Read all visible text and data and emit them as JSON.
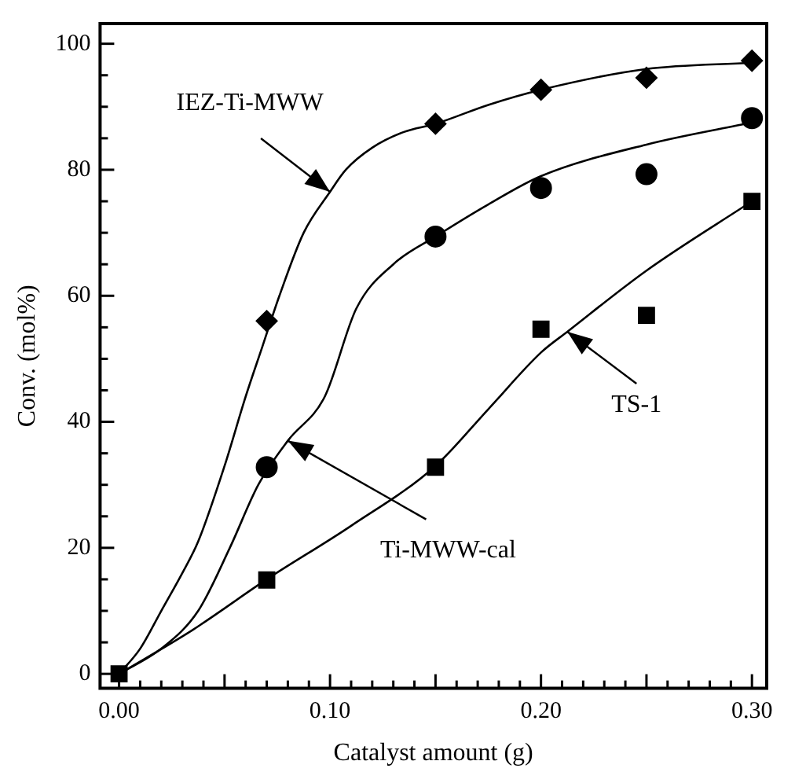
{
  "chart_data": {
    "type": "scatter",
    "xlabel": "Catalyst amount (g)",
    "ylabel": "Conv. (mol%)",
    "xlim": [
      -0.009,
      0.307
    ],
    "ylim": [
      -2.3,
      103.2
    ],
    "xticks": [
      {
        "value": 0,
        "label": "0.00"
      },
      {
        "value": 0.01,
        "label": null
      },
      {
        "value": 0.02,
        "label": null
      },
      {
        "value": 0.03,
        "label": null
      },
      {
        "value": 0.04,
        "label": null
      },
      {
        "value": 0.05,
        "label": null
      },
      {
        "value": 0.06,
        "label": null
      },
      {
        "value": 0.07,
        "label": null
      },
      {
        "value": 0.08,
        "label": null
      },
      {
        "value": 0.09,
        "label": null
      },
      {
        "value": 0.1,
        "label": "0.10"
      },
      {
        "value": 0.11,
        "label": null
      },
      {
        "value": 0.12,
        "label": null
      },
      {
        "value": 0.13,
        "label": null
      },
      {
        "value": 0.14,
        "label": null
      },
      {
        "value": 0.15,
        "label": null
      },
      {
        "value": 0.16,
        "label": null
      },
      {
        "value": 0.17,
        "label": null
      },
      {
        "value": 0.18,
        "label": null
      },
      {
        "value": 0.19,
        "label": null
      },
      {
        "value": 0.2,
        "label": "0.20"
      },
      {
        "value": 0.21,
        "label": null
      },
      {
        "value": 0.22,
        "label": null
      },
      {
        "value": 0.23,
        "label": null
      },
      {
        "value": 0.24,
        "label": null
      },
      {
        "value": 0.25,
        "label": null
      },
      {
        "value": 0.26,
        "label": null
      },
      {
        "value": 0.27,
        "label": null
      },
      {
        "value": 0.28,
        "label": null
      },
      {
        "value": 0.29,
        "label": null
      },
      {
        "value": 0.3,
        "label": "0.30"
      }
    ],
    "yticks": [
      0,
      {
        "value": 5,
        "label": null
      },
      {
        "value": 10,
        "label": null
      },
      {
        "value": 15,
        "label": null
      },
      20,
      {
        "value": 25,
        "label": null
      },
      {
        "value": 30,
        "label": null
      },
      {
        "value": 35,
        "label": null
      },
      40,
      {
        "value": 45,
        "label": null
      },
      {
        "value": 50,
        "label": null
      },
      {
        "value": 55,
        "label": null
      },
      60,
      {
        "value": 65,
        "label": null
      },
      {
        "value": 70,
        "label": null
      },
      {
        "value": 75,
        "label": null
      },
      80,
      {
        "value": 85,
        "label": null
      },
      {
        "value": 90,
        "label": null
      },
      {
        "value": 95,
        "label": null
      },
      100
    ],
    "grid": false,
    "legend": false,
    "series": [
      {
        "type": "scatter",
        "marker": "diamond",
        "color": "#000000",
        "x": [
          0.07,
          0.15,
          0.2,
          0.25,
          0.3
        ],
        "values": [
          56,
          87.3,
          92.7,
          94.6,
          97.3
        ]
      },
      {
        "type": "scatter",
        "marker": "circle",
        "color": "#000000",
        "x": [
          0.07,
          0.15,
          0.2,
          0.25,
          0.3
        ],
        "values": [
          32.8,
          69.4,
          77.1,
          79.3,
          88.2
        ]
      },
      {
        "type": "scatter",
        "marker": "square",
        "color": "#000000",
        "x": [
          0,
          0.07,
          0.15,
          0.2,
          0.25,
          0.3
        ],
        "values": [
          0,
          14.9,
          32.8,
          54.7,
          56.9,
          75
        ]
      },
      {
        "type": "line",
        "marker": "none",
        "color": "#000000",
        "x": [
          0,
          0.01,
          0.02,
          0.03,
          0.0375,
          0.05,
          0.06,
          0.068,
          0.076,
          0.0875,
          0.1,
          0.1075,
          0.12,
          0.135,
          0.15,
          0.175,
          0.2,
          0.25,
          0.3
        ],
        "values": [
          0,
          4,
          10,
          16,
          21,
          33,
          44,
          52,
          60,
          70,
          76.5,
          80,
          83.5,
          86,
          87.3,
          90.3,
          92.7,
          96,
          97
        ]
      },
      {
        "type": "line",
        "marker": "none",
        "color": "#000000",
        "x": [
          0,
          0.02,
          0.0375,
          0.0525,
          0.066,
          0.08,
          0.0975,
          0.1125,
          0.13,
          0.15,
          0.175,
          0.2,
          0.25,
          0.3
        ],
        "values": [
          0,
          4,
          10,
          20,
          30,
          37,
          44,
          58,
          65,
          69.4,
          74.5,
          79,
          84,
          87.5
        ]
      },
      {
        "type": "line",
        "marker": "none",
        "color": "#000000",
        "x": [
          0,
          0.035,
          0.07,
          0.11,
          0.15,
          0.175,
          0.2,
          0.2125,
          0.25,
          0.3
        ],
        "values": [
          0,
          7,
          15,
          23.5,
          33,
          42,
          51,
          54.3,
          64,
          75
        ]
      }
    ],
    "annotations": [
      {
        "text": "IEZ-Ti-MWW",
        "x": 0.1,
        "y": 76.5
      },
      {
        "text": "Ti-MWW-cal",
        "x": 0.08,
        "y": 37
      },
      {
        "text": "TS-1",
        "x": 0.2125,
        "y": 54.3
      }
    ]
  }
}
